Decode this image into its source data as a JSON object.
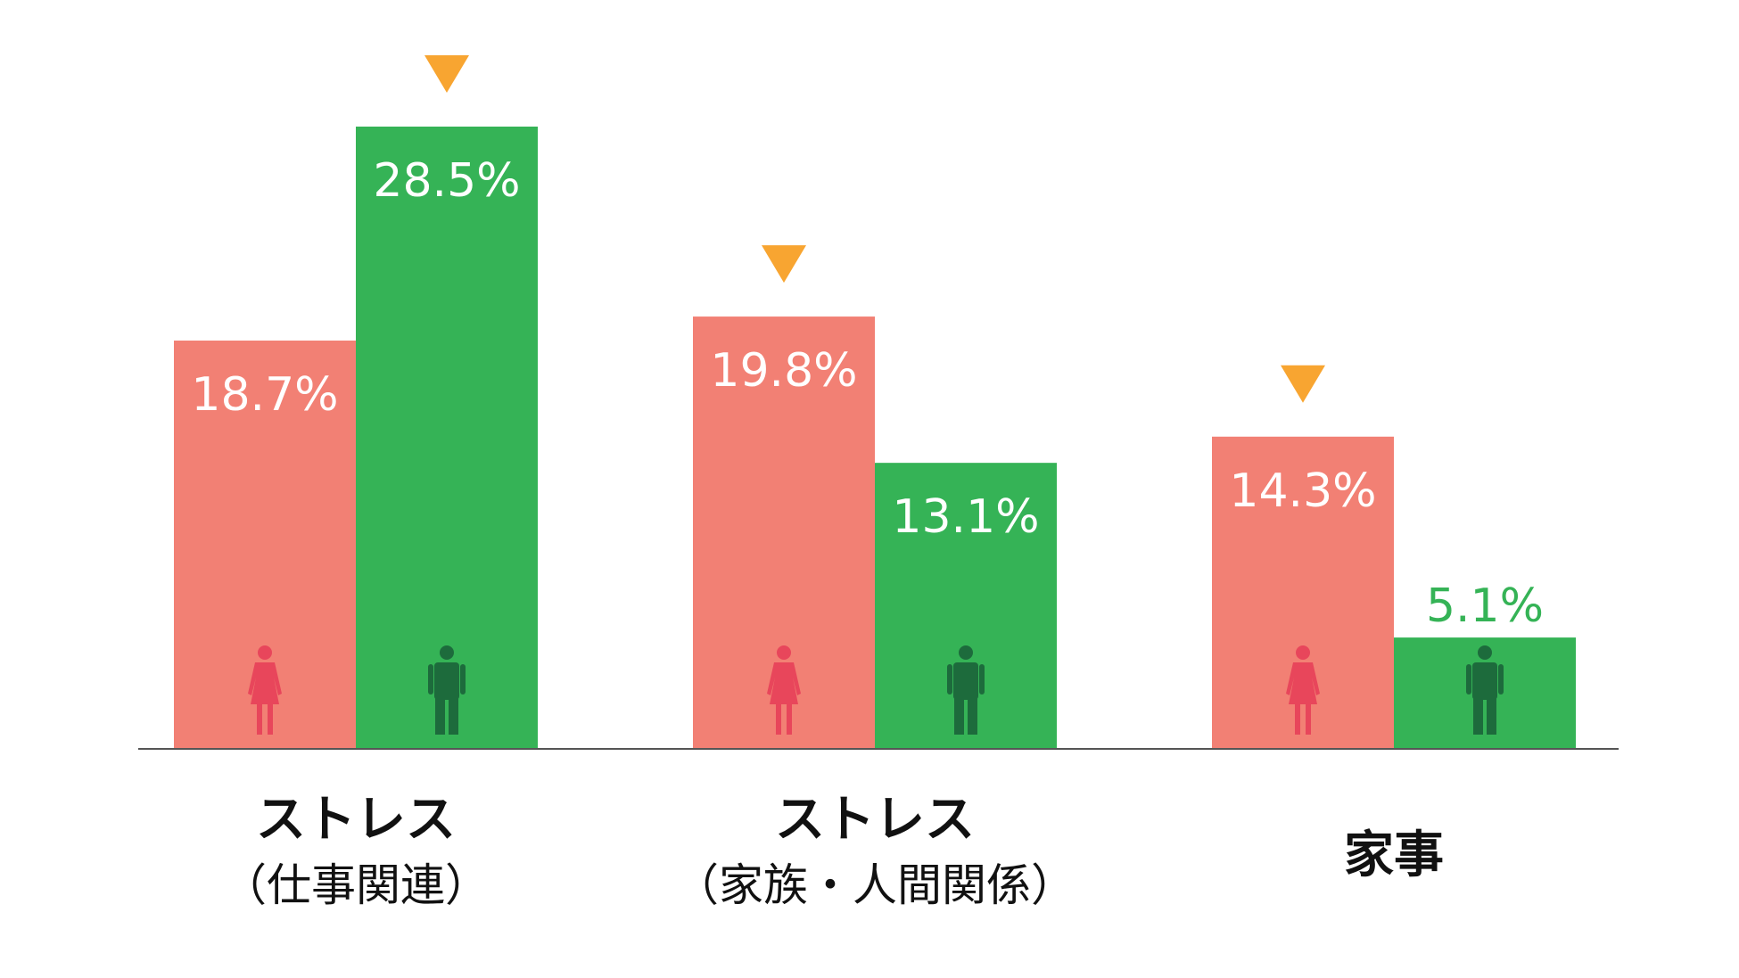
{
  "colors": {
    "female": "#f28074",
    "male": "#35b356",
    "female_icon": "#e8465b",
    "male_icon": "#1d6b3c",
    "marker": "#f8a531",
    "axis": "#555555",
    "label_on_bar": "#ffffff"
  },
  "chart_data": {
    "type": "bar",
    "categories": [
      {
        "line1": "ストレス",
        "line2": "（仕事関連）"
      },
      {
        "line1": "ストレス",
        "line2": "（家族・人間関係）"
      },
      {
        "line1": "家事",
        "line2": ""
      }
    ],
    "series": [
      {
        "values": [
          18.7,
          19.8,
          14.3
        ],
        "labels": [
          "18.7%",
          "19.8%",
          "14.3%"
        ],
        "icon": "female-icon"
      },
      {
        "values": [
          28.5,
          13.1,
          5.1
        ],
        "labels": [
          "28.5%",
          "13.1%",
          "5.1%"
        ],
        "icon": "male-icon"
      }
    ],
    "highlight_marker": "down-triangle-icon",
    "ylim": [
      0,
      29.5
    ],
    "grid": false,
    "legend": "none"
  }
}
